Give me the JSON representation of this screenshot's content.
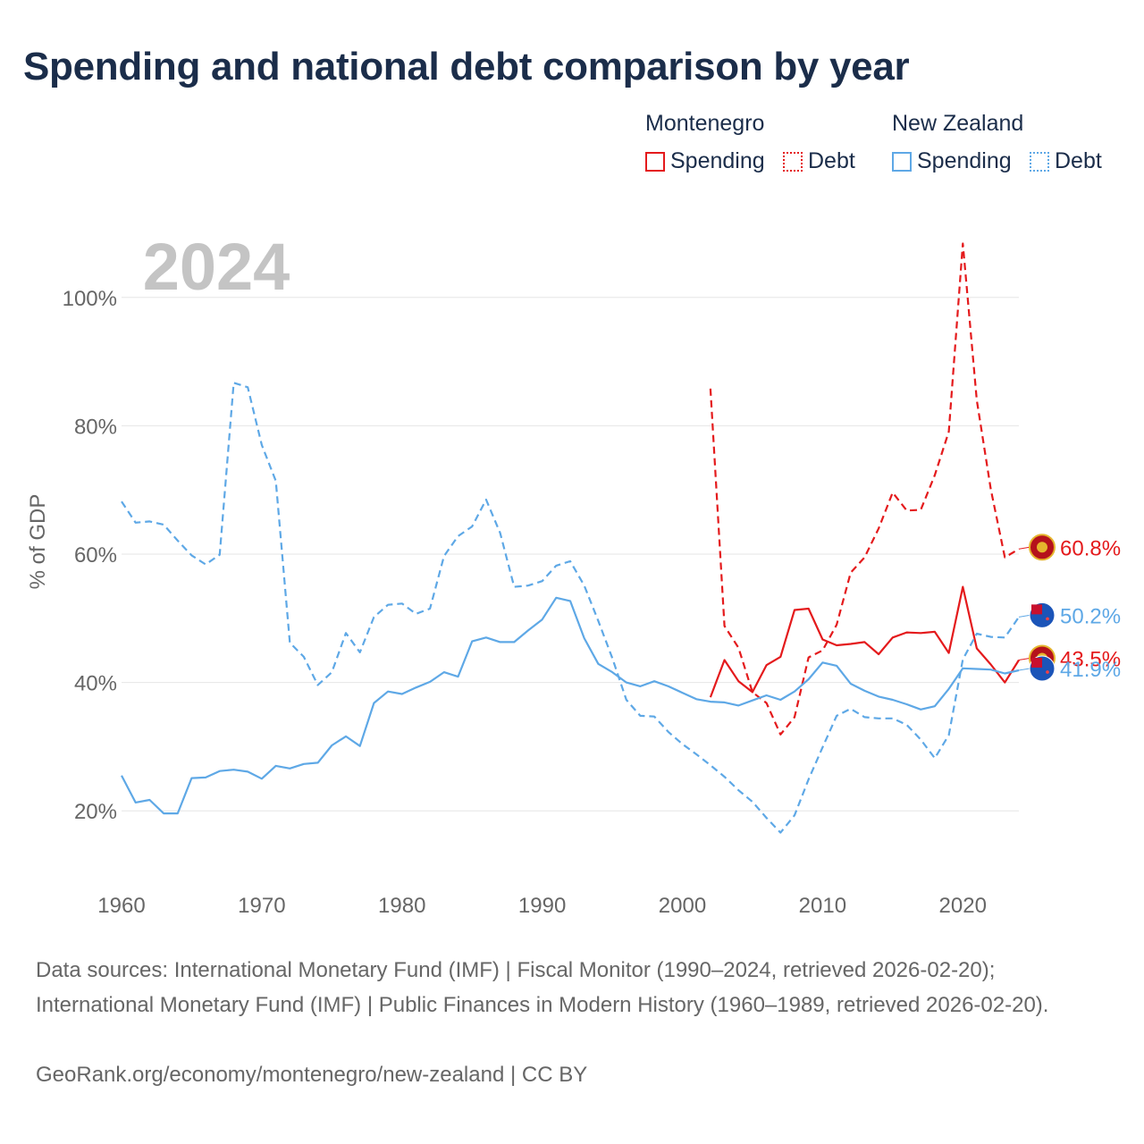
{
  "title": "Spending and national debt comparison by year",
  "legend": {
    "groups": [
      {
        "name": "Montenegro",
        "color": "#e41a1c",
        "items": [
          "Spending",
          "Debt"
        ]
      },
      {
        "name": "New Zealand",
        "color": "#5ea8e6",
        "items": [
          "Spending",
          "Debt"
        ]
      }
    ]
  },
  "footer": {
    "sources": "Data sources: International Monetary Fund (IMF) | Fiscal Monitor (1990–2024, retrieved 2026-02-20); International Monetary Fund (IMF) | Public Finances in Modern History (1960–1989, retrieved 2026-02-20).",
    "credit": "GeoRank.org/economy/montenegro/new-zealand | CC BY"
  },
  "chart_data": {
    "type": "line",
    "year_label": "2024",
    "ylabel": "% of GDP",
    "xlim": [
      1960,
      2024
    ],
    "ylim": [
      10,
      110
    ],
    "x_ticks": [
      1960,
      1970,
      1980,
      1990,
      2000,
      2010,
      2020
    ],
    "x_tick_labels": [
      "1960",
      "1970",
      "1980",
      "1990",
      "2000",
      "2010",
      "2020"
    ],
    "y_ticks": [
      20,
      40,
      60,
      80,
      100
    ],
    "y_tick_labels": [
      "20%",
      "40%",
      "60%",
      "80%",
      "100%"
    ],
    "series": [
      {
        "name": "Montenegro Spending",
        "country": "Montenegro",
        "metric": "Spending",
        "color": "#e41a1c",
        "style": "solid",
        "end_label": "43.5%",
        "points": [
          [
            2002,
            37.7
          ],
          [
            2003,
            43.5
          ],
          [
            2004,
            40.2
          ],
          [
            2005,
            38.5
          ],
          [
            2006,
            42.7
          ],
          [
            2007,
            44.0
          ],
          [
            2008,
            51.3
          ],
          [
            2009,
            51.5
          ],
          [
            2010,
            46.7
          ],
          [
            2011,
            45.8
          ],
          [
            2012,
            46.0
          ],
          [
            2013,
            46.3
          ],
          [
            2014,
            44.4
          ],
          [
            2015,
            47.0
          ],
          [
            2016,
            47.8
          ],
          [
            2017,
            47.7
          ],
          [
            2018,
            47.9
          ],
          [
            2019,
            44.6
          ],
          [
            2020,
            54.9
          ],
          [
            2021,
            45.3
          ],
          [
            2022,
            42.8
          ],
          [
            2023,
            40.0
          ],
          [
            2024,
            43.5
          ]
        ]
      },
      {
        "name": "Montenegro Debt",
        "country": "Montenegro",
        "metric": "Debt",
        "color": "#e41a1c",
        "style": "dashed",
        "end_label": "60.8%",
        "points": [
          [
            2002,
            85.8
          ],
          [
            2003,
            48.8
          ],
          [
            2004,
            45.4
          ],
          [
            2005,
            38.5
          ],
          [
            2006,
            36.8
          ],
          [
            2007,
            31.9
          ],
          [
            2008,
            34.6
          ],
          [
            2009,
            43.9
          ],
          [
            2010,
            45.0
          ],
          [
            2011,
            49.0
          ],
          [
            2012,
            57.1
          ],
          [
            2013,
            59.5
          ],
          [
            2014,
            64.0
          ],
          [
            2015,
            69.6
          ],
          [
            2016,
            66.8
          ],
          [
            2017,
            66.9
          ],
          [
            2018,
            72.3
          ],
          [
            2019,
            79.1
          ],
          [
            2020,
            108.4
          ],
          [
            2021,
            84.0
          ],
          [
            2022,
            70.1
          ],
          [
            2023,
            59.5
          ],
          [
            2024,
            60.8
          ]
        ]
      },
      {
        "name": "New Zealand Spending",
        "country": "New Zealand",
        "metric": "Spending",
        "color": "#5ea8e6",
        "style": "solid",
        "end_label": "41.9%",
        "points": [
          [
            1960,
            25.5
          ],
          [
            1961,
            21.3
          ],
          [
            1962,
            21.7
          ],
          [
            1963,
            19.6
          ],
          [
            1964,
            19.6
          ],
          [
            1965,
            25.1
          ],
          [
            1966,
            25.2
          ],
          [
            1967,
            26.2
          ],
          [
            1968,
            26.4
          ],
          [
            1969,
            26.1
          ],
          [
            1970,
            25.0
          ],
          [
            1971,
            27.0
          ],
          [
            1972,
            26.6
          ],
          [
            1973,
            27.3
          ],
          [
            1974,
            27.5
          ],
          [
            1975,
            30.2
          ],
          [
            1976,
            31.6
          ],
          [
            1977,
            30.1
          ],
          [
            1978,
            36.8
          ],
          [
            1979,
            38.6
          ],
          [
            1980,
            38.2
          ],
          [
            1981,
            39.2
          ],
          [
            1982,
            40.1
          ],
          [
            1983,
            41.6
          ],
          [
            1984,
            40.9
          ],
          [
            1985,
            46.4
          ],
          [
            1986,
            47.0
          ],
          [
            1987,
            46.3
          ],
          [
            1988,
            46.3
          ],
          [
            1989,
            48.1
          ],
          [
            1990,
            49.8
          ],
          [
            1991,
            53.2
          ],
          [
            1992,
            52.7
          ],
          [
            1993,
            46.9
          ],
          [
            1994,
            42.9
          ],
          [
            1995,
            41.6
          ],
          [
            1996,
            40.0
          ],
          [
            1997,
            39.4
          ],
          [
            1998,
            40.2
          ],
          [
            1999,
            39.4
          ],
          [
            2000,
            38.4
          ],
          [
            2001,
            37.4
          ],
          [
            2002,
            37.0
          ],
          [
            2003,
            36.9
          ],
          [
            2004,
            36.4
          ],
          [
            2005,
            37.2
          ],
          [
            2006,
            38.0
          ],
          [
            2007,
            37.3
          ],
          [
            2008,
            38.6
          ],
          [
            2009,
            40.5
          ],
          [
            2010,
            43.1
          ],
          [
            2011,
            42.6
          ],
          [
            2012,
            39.8
          ],
          [
            2013,
            38.7
          ],
          [
            2014,
            37.8
          ],
          [
            2015,
            37.3
          ],
          [
            2016,
            36.6
          ],
          [
            2017,
            35.8
          ],
          [
            2018,
            36.3
          ],
          [
            2019,
            39.0
          ],
          [
            2020,
            42.2
          ],
          [
            2021,
            42.1
          ],
          [
            2022,
            42.0
          ],
          [
            2023,
            41.4
          ],
          [
            2024,
            41.9
          ]
        ]
      },
      {
        "name": "New Zealand Debt",
        "country": "New Zealand",
        "metric": "Debt",
        "color": "#5ea8e6",
        "style": "dashed",
        "end_label": "50.2%",
        "points": [
          [
            1960,
            68.2
          ],
          [
            1961,
            64.9
          ],
          [
            1962,
            65.1
          ],
          [
            1963,
            64.6
          ],
          [
            1964,
            62.1
          ],
          [
            1965,
            59.8
          ],
          [
            1966,
            58.4
          ],
          [
            1967,
            59.9
          ],
          [
            1968,
            86.7
          ],
          [
            1969,
            86.0
          ],
          [
            1970,
            77.0
          ],
          [
            1971,
            71.4
          ],
          [
            1972,
            46.2
          ],
          [
            1973,
            44.0
          ],
          [
            1974,
            39.6
          ],
          [
            1975,
            41.6
          ],
          [
            1976,
            47.7
          ],
          [
            1977,
            44.7
          ],
          [
            1978,
            50.2
          ],
          [
            1979,
            52.1
          ],
          [
            1980,
            52.3
          ],
          [
            1981,
            50.7
          ],
          [
            1982,
            51.5
          ],
          [
            1983,
            59.7
          ],
          [
            1984,
            62.8
          ],
          [
            1985,
            64.3
          ],
          [
            1986,
            68.5
          ],
          [
            1987,
            63.3
          ],
          [
            1988,
            54.9
          ],
          [
            1989,
            55.1
          ],
          [
            1990,
            55.8
          ],
          [
            1991,
            58.2
          ],
          [
            1992,
            58.9
          ],
          [
            1993,
            55.1
          ],
          [
            1994,
            49.6
          ],
          [
            1995,
            43.8
          ],
          [
            1996,
            37.3
          ],
          [
            1997,
            34.8
          ],
          [
            1998,
            34.7
          ],
          [
            1999,
            32.3
          ],
          [
            2000,
            30.4
          ],
          [
            2001,
            28.8
          ],
          [
            2002,
            27.1
          ],
          [
            2003,
            25.3
          ],
          [
            2004,
            23.2
          ],
          [
            2005,
            21.4
          ],
          [
            2006,
            18.9
          ],
          [
            2007,
            16.6
          ],
          [
            2008,
            19.3
          ],
          [
            2009,
            24.9
          ],
          [
            2010,
            29.9
          ],
          [
            2011,
            34.8
          ],
          [
            2012,
            35.9
          ],
          [
            2013,
            34.6
          ],
          [
            2014,
            34.4
          ],
          [
            2015,
            34.4
          ],
          [
            2016,
            33.4
          ],
          [
            2017,
            31.1
          ],
          [
            2018,
            28.2
          ],
          [
            2019,
            31.8
          ],
          [
            2020,
            43.6
          ],
          [
            2021,
            47.6
          ],
          [
            2022,
            47.1
          ],
          [
            2023,
            47.0
          ],
          [
            2024,
            50.2
          ]
        ]
      }
    ]
  }
}
